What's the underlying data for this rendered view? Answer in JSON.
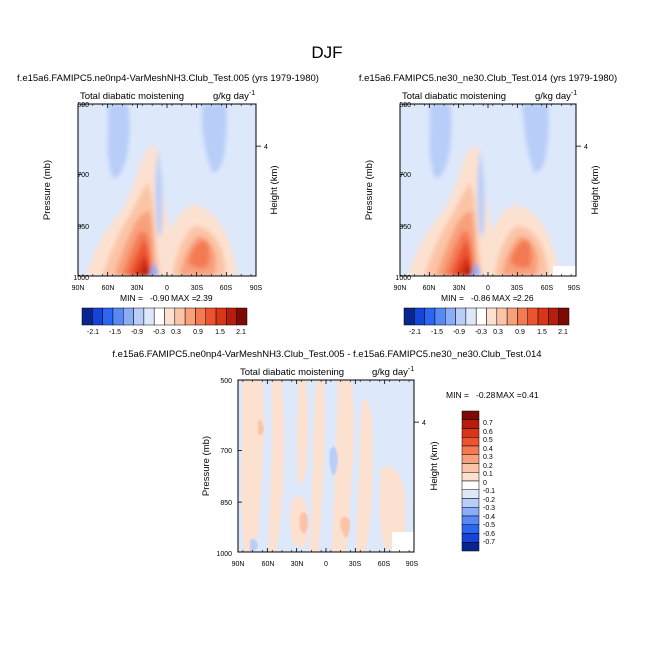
{
  "figure_title": "DJF",
  "chart_data": [
    {
      "type": "heatmap",
      "title": "f.e15a6.FAMIPC5.ne0np4-VarMeshNH3.Club_Test.005 (yrs 1979-1980)",
      "left_string": "Total diabatic moistening",
      "right_string": "g/kg day",
      "right_string_exp": "-1",
      "ylabel": "Pressure (mb)",
      "ylabel_right": "Height (km)",
      "x_ticks": [
        "90N",
        "60N",
        "30N",
        "0",
        "30S",
        "60S",
        "90S"
      ],
      "y_ticks": [
        "500",
        "700",
        "850",
        "1000"
      ],
      "y_right_ticks": [
        "4"
      ],
      "min_label": "MIN =",
      "min_value": "-0.90",
      "max_label": "MAX =",
      "max_value": "2.39",
      "levels": [
        "-2.1",
        "-1.5",
        "-0.9",
        "-0.3",
        "0.3",
        "0.9",
        "1.5",
        "2.1"
      ]
    },
    {
      "type": "heatmap",
      "title": "f.e15a6.FAMIPC5.ne30_ne30.Club_Test.014 (yrs 1979-1980)",
      "left_string": "Total diabatic moistening",
      "right_string": "g/kg day",
      "right_string_exp": "-1",
      "ylabel": "Pressure (mb)",
      "ylabel_right": "Height (km)",
      "x_ticks": [
        "90N",
        "60N",
        "30N",
        "0",
        "30S",
        "60S",
        "90S"
      ],
      "y_ticks": [
        "500",
        "700",
        "850",
        "1000"
      ],
      "y_right_ticks": [
        "4"
      ],
      "min_label": "MIN =",
      "min_value": "-0.86",
      "max_label": "MAX =",
      "max_value": "2.26",
      "levels": [
        "-2.1",
        "-1.5",
        "-0.9",
        "-0.3",
        "0.3",
        "0.9",
        "1.5",
        "2.1"
      ]
    },
    {
      "type": "heatmap",
      "title": "f.e15a6.FAMIPC5.ne0np4-VarMeshNH3.Club_Test.005 - f.e15a6.FAMIPC5.ne30_ne30.Club_Test.014",
      "left_string": "Total diabatic moistening",
      "right_string": "g/kg day",
      "right_string_exp": "-1",
      "ylabel": "Pressure (mb)",
      "ylabel_right": "Height (km)",
      "x_ticks": [
        "90N",
        "60N",
        "30N",
        "0",
        "30S",
        "60S",
        "90S"
      ],
      "y_ticks": [
        "500",
        "700",
        "850",
        "1000"
      ],
      "y_right_ticks": [
        "4"
      ],
      "min_label": "MIN =",
      "min_value": "-0.28",
      "max_label": "MAX =",
      "max_value": "0.41",
      "levels": [
        "0.7",
        "0.6",
        "0.5",
        "0.4",
        "0.3",
        "0.2",
        "0.1",
        "0",
        "-0.1",
        "-0.2",
        "-0.3",
        "-0.4",
        "-0.5",
        "-0.6",
        "-0.7"
      ]
    }
  ],
  "colors": {
    "abs_bar": [
      "#08268c",
      "#1644d8",
      "#2a66f2",
      "#5888f4",
      "#8aaef6",
      "#b8cdf8",
      "#dde8fb",
      "#ffffff",
      "#fde1d0",
      "#fbc4a6",
      "#f8a07c",
      "#f47a52",
      "#ec5330",
      "#d93518",
      "#b51d0c",
      "#7e0a05"
    ],
    "diff_bar": [
      "#7e0a05",
      "#b51d0c",
      "#d93518",
      "#ec5330",
      "#f47a52",
      "#f8a07c",
      "#fbc4a6",
      "#fde1d0",
      "#ffffff",
      "#dde8fb",
      "#b8cdf8",
      "#8aaef6",
      "#5888f4",
      "#2a66f2",
      "#1644d8",
      "#08268c"
    ]
  }
}
